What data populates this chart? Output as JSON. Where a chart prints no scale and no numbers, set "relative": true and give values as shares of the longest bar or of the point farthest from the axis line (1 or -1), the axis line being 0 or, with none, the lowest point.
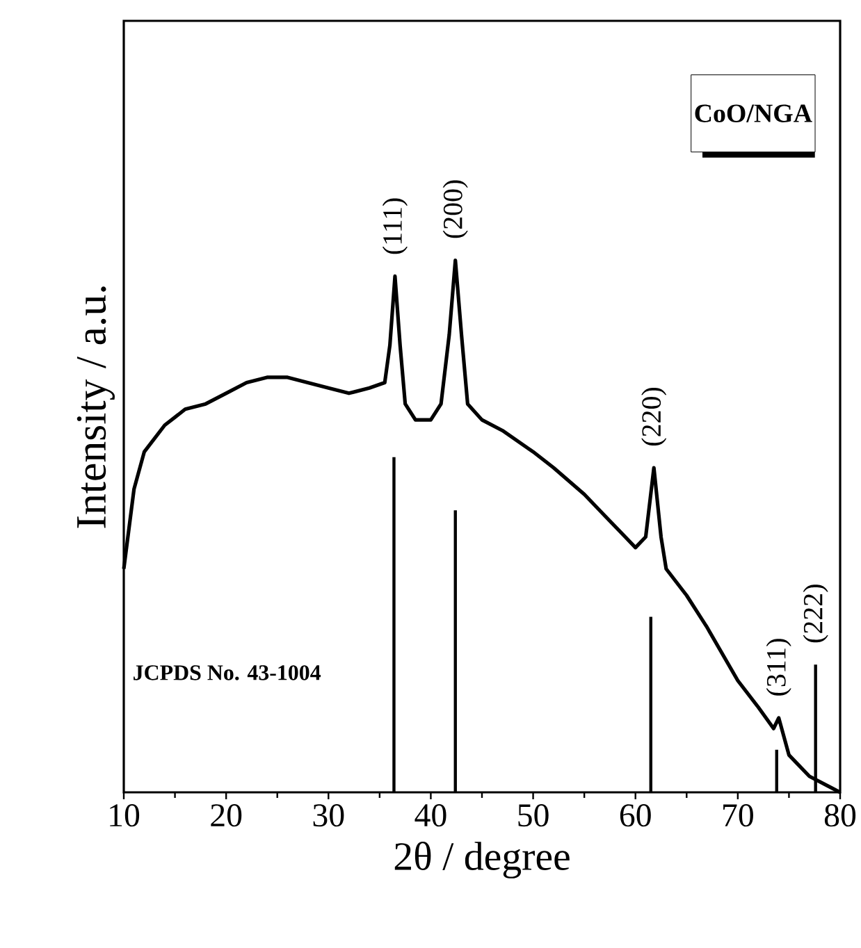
{
  "chart_data": {
    "type": "line",
    "relative": true,
    "xlabel": "2θ / degree",
    "ylabel": "Intensity / a.u.",
    "xlim": [
      10,
      80
    ],
    "xticks": [
      10,
      20,
      30,
      40,
      50,
      60,
      70,
      80
    ],
    "tick_labels": "x",
    "grid": false,
    "series": [
      {
        "color": "#000000",
        "x": [
          10,
          11,
          12,
          14,
          16,
          18,
          20,
          22,
          24,
          26,
          28,
          30,
          32,
          34,
          35.5,
          36,
          36.5,
          37,
          37.5,
          38.5,
          40,
          41,
          41.8,
          42.4,
          43,
          43.6,
          45,
          47,
          50,
          52,
          55,
          57,
          59,
          60,
          61,
          61.8,
          62.5,
          63,
          65,
          67,
          70,
          72,
          73.5,
          74,
          75,
          77,
          79,
          80
        ],
        "values": [
          0.42,
          0.57,
          0.64,
          0.69,
          0.72,
          0.73,
          0.75,
          0.77,
          0.78,
          0.78,
          0.77,
          0.76,
          0.75,
          0.76,
          0.77,
          0.84,
          0.97,
          0.84,
          0.73,
          0.7,
          0.7,
          0.73,
          0.86,
          1.0,
          0.86,
          0.73,
          0.7,
          0.68,
          0.64,
          0.61,
          0.56,
          0.52,
          0.48,
          0.46,
          0.48,
          0.61,
          0.48,
          0.42,
          0.37,
          0.31,
          0.21,
          0.16,
          0.12,
          0.14,
          0.07,
          0.03,
          0.01,
          0
        ]
      },
      {
        "type": "bar",
        "color": "#000000",
        "x": [
          36.4,
          42.4,
          61.5,
          73.8,
          77.6
        ],
        "values": [
          0.63,
          0.53,
          0.33,
          0.08,
          0.24
        ]
      }
    ],
    "annotations": [
      {
        "text": "(111)",
        "x": 36.5,
        "y": 0.97
      },
      {
        "text": "(200)",
        "x": 42.4,
        "y": 1.0
      },
      {
        "text": "(220)",
        "x": 61.8,
        "y": 0.61
      },
      {
        "text": "(311)",
        "x": 74,
        "y": 0.14
      },
      {
        "text": "(222)",
        "x": 77.6,
        "y": 0.24
      },
      "CoO/NGA",
      "JCPDS No. 43-1004"
    ]
  }
}
